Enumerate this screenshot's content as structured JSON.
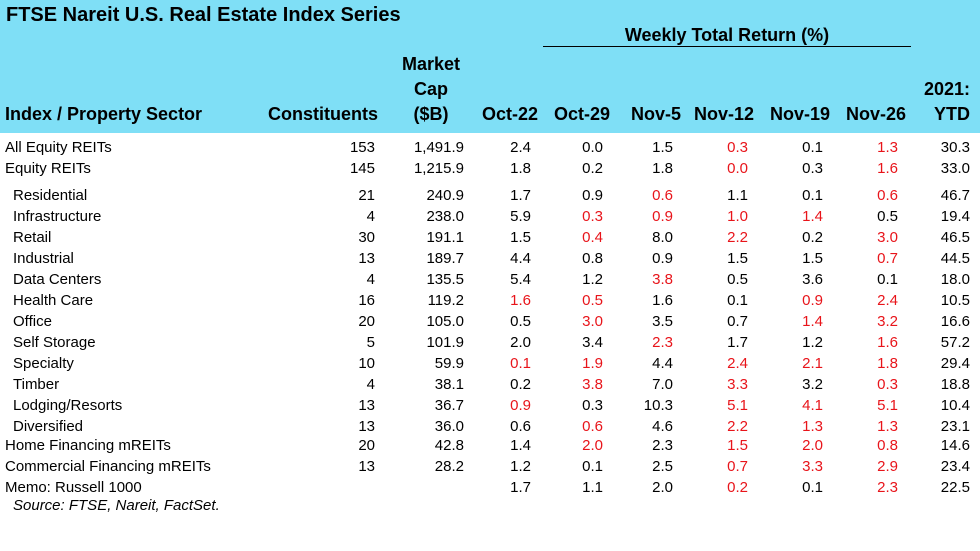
{
  "title": "FTSE Nareit U.S. Real Estate Index Series",
  "group_header": "Weekly Total Return (%)",
  "headers": {
    "sector": "Index / Property Sector",
    "constituents": "Constituents",
    "mcap_line1": "Market",
    "mcap_line2": "Cap",
    "mcap_line3": "($B)",
    "weeks": [
      "Oct-22",
      "Oct-29",
      "Nov-5",
      "Nov-12",
      "Nov-19",
      "Nov-26"
    ],
    "ytd_line1": "2021:",
    "ytd_line2": "YTD"
  },
  "colors": {
    "header_bg": "#7fdff6",
    "negative_text": "#e8141a",
    "text": "#000000"
  },
  "rows": [
    {
      "name": "All Equity REITs",
      "indent": false,
      "constituents": "153",
      "mcap": "1,491.9",
      "weeks": [
        "2.4",
        "0.0",
        "1.5",
        "0.3",
        "0.1",
        "1.3"
      ],
      "neg": [
        false,
        false,
        false,
        true,
        false,
        true
      ],
      "ytd": "30.3"
    },
    {
      "name": "Equity REITs",
      "indent": false,
      "constituents": "145",
      "mcap": "1,215.9",
      "weeks": [
        "1.8",
        "0.2",
        "1.8",
        "0.0",
        "0.3",
        "1.6"
      ],
      "neg": [
        false,
        false,
        false,
        true,
        false,
        true
      ],
      "ytd": "33.0"
    },
    {
      "name": "Residential",
      "indent": true,
      "constituents": "21",
      "mcap": "240.9",
      "weeks": [
        "1.7",
        "0.9",
        "0.6",
        "1.1",
        "0.1",
        "0.6"
      ],
      "neg": [
        false,
        false,
        true,
        false,
        false,
        true
      ],
      "ytd": "46.7"
    },
    {
      "name": "Infrastructure",
      "indent": true,
      "constituents": "4",
      "mcap": "238.0",
      "weeks": [
        "5.9",
        "0.3",
        "0.9",
        "1.0",
        "1.4",
        "0.5"
      ],
      "neg": [
        false,
        true,
        true,
        true,
        true,
        false
      ],
      "ytd": "19.4"
    },
    {
      "name": "Retail",
      "indent": true,
      "constituents": "30",
      "mcap": "191.1",
      "weeks": [
        "1.5",
        "0.4",
        "8.0",
        "2.2",
        "0.2",
        "3.0"
      ],
      "neg": [
        false,
        true,
        false,
        true,
        false,
        true
      ],
      "ytd": "46.5"
    },
    {
      "name": "Industrial",
      "indent": true,
      "constituents": "13",
      "mcap": "189.7",
      "weeks": [
        "4.4",
        "0.8",
        "0.9",
        "1.5",
        "1.5",
        "0.7"
      ],
      "neg": [
        false,
        false,
        false,
        false,
        false,
        true
      ],
      "ytd": "44.5"
    },
    {
      "name": "Data Centers",
      "indent": true,
      "constituents": "4",
      "mcap": "135.5",
      "weeks": [
        "5.4",
        "1.2",
        "3.8",
        "0.5",
        "3.6",
        "0.1"
      ],
      "neg": [
        false,
        false,
        true,
        false,
        false,
        false
      ],
      "ytd": "18.0"
    },
    {
      "name": "Health Care",
      "indent": true,
      "constituents": "16",
      "mcap": "119.2",
      "weeks": [
        "1.6",
        "0.5",
        "1.6",
        "0.1",
        "0.9",
        "2.4"
      ],
      "neg": [
        true,
        true,
        false,
        false,
        true,
        true
      ],
      "ytd": "10.5"
    },
    {
      "name": "Office",
      "indent": true,
      "constituents": "20",
      "mcap": "105.0",
      "weeks": [
        "0.5",
        "3.0",
        "3.5",
        "0.7",
        "1.4",
        "3.2"
      ],
      "neg": [
        false,
        true,
        false,
        false,
        true,
        true
      ],
      "ytd": "16.6"
    },
    {
      "name": "Self Storage",
      "indent": true,
      "constituents": "5",
      "mcap": "101.9",
      "weeks": [
        "2.0",
        "3.4",
        "2.3",
        "1.7",
        "1.2",
        "1.6"
      ],
      "neg": [
        false,
        false,
        true,
        false,
        false,
        true
      ],
      "ytd": "57.2"
    },
    {
      "name": "Specialty",
      "indent": true,
      "constituents": "10",
      "mcap": "59.9",
      "weeks": [
        "0.1",
        "1.9",
        "4.4",
        "2.4",
        "2.1",
        "1.8"
      ],
      "neg": [
        true,
        true,
        false,
        true,
        true,
        true
      ],
      "ytd": "29.4"
    },
    {
      "name": "Timber",
      "indent": true,
      "constituents": "4",
      "mcap": "38.1",
      "weeks": [
        "0.2",
        "3.8",
        "7.0",
        "3.3",
        "3.2",
        "0.3"
      ],
      "neg": [
        false,
        true,
        false,
        true,
        false,
        true
      ],
      "ytd": "18.8"
    },
    {
      "name": "Lodging/Resorts",
      "indent": true,
      "constituents": "13",
      "mcap": "36.7",
      "weeks": [
        "0.9",
        "0.3",
        "10.3",
        "5.1",
        "4.1",
        "5.1"
      ],
      "neg": [
        true,
        false,
        false,
        true,
        true,
        true
      ],
      "ytd": "10.4"
    },
    {
      "name": "Diversified",
      "indent": true,
      "constituents": "13",
      "mcap": "36.0",
      "weeks": [
        "0.6",
        "0.6",
        "4.6",
        "2.2",
        "1.3",
        "1.3"
      ],
      "neg": [
        false,
        true,
        false,
        true,
        true,
        true
      ],
      "ytd": "23.1"
    },
    {
      "name": "Home Financing mREITs",
      "indent": false,
      "constituents": "20",
      "mcap": "42.8",
      "weeks": [
        "1.4",
        "2.0",
        "2.3",
        "1.5",
        "2.0",
        "0.8"
      ],
      "neg": [
        false,
        true,
        false,
        true,
        true,
        true
      ],
      "ytd": "14.6"
    },
    {
      "name": "Commercial Financing mREITs",
      "indent": false,
      "constituents": "13",
      "mcap": "28.2",
      "weeks": [
        "1.2",
        "0.1",
        "2.5",
        "0.7",
        "3.3",
        "2.9"
      ],
      "neg": [
        false,
        false,
        false,
        true,
        true,
        true
      ],
      "ytd": "23.4"
    },
    {
      "name": "Memo: Russell 1000",
      "indent": false,
      "constituents": "",
      "mcap": "",
      "weeks": [
        "1.7",
        "1.1",
        "2.0",
        "0.2",
        "0.1",
        "2.3"
      ],
      "neg": [
        false,
        false,
        false,
        true,
        false,
        true
      ],
      "ytd": "22.5"
    }
  ],
  "source": "Source: FTSE, Nareit, FactSet."
}
